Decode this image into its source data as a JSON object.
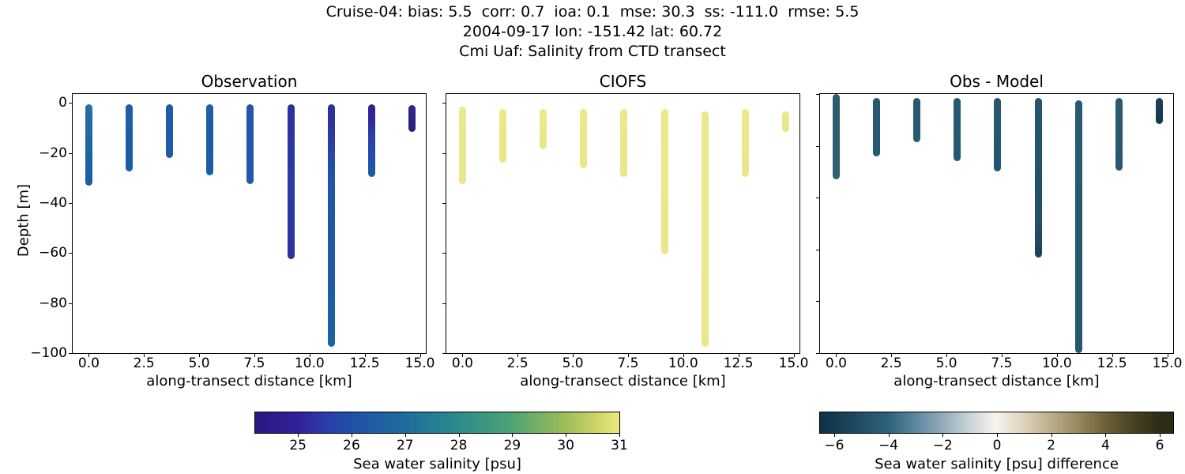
{
  "chart_data": {
    "type": "scatter",
    "suptitle": [
      "Cruise-04: bias: 5.5  corr: 0.7  ioa: 0.1  mse: 30.3  ss: -111.0  rmse: 5.5",
      "2004-09-17 lon: -151.42 lat: 60.72",
      "Cmi Uaf: Salinity from CTD transect"
    ],
    "xlabel": "along-transect distance [km]",
    "ylabel": "Depth [m]",
    "xlim": [
      -0.73,
      15.27
    ],
    "x_ticks": [
      0,
      2.5,
      5,
      7.5,
      10,
      12.5,
      15
    ],
    "x_tick_labels": [
      "0.0",
      "2.5",
      "5.0",
      "7.5",
      "10.0",
      "12.5",
      "15.0"
    ],
    "y_ticks": [
      0,
      -20,
      -40,
      -60,
      -80,
      -100
    ],
    "y_tick_labels": [
      "0",
      "−20",
      "−40",
      "−60",
      "−80",
      "−100"
    ],
    "station_distances_km": [
      0.0,
      1.83,
      3.66,
      5.49,
      7.32,
      9.15,
      10.98,
      12.81,
      14.64
    ],
    "panels": [
      {
        "title": "Observation",
        "ylim": [
          3.5,
          -100
        ],
        "bars": [
          {
            "x": 0.0,
            "top": -0.5,
            "bottom": -33,
            "stops": [
              [
                0,
                "#2470a2"
              ],
              [
                1,
                "#1a5ca4"
              ]
            ]
          },
          {
            "x": 1.83,
            "top": -0.5,
            "bottom": -27.5,
            "stops": [
              [
                0,
                "#1d5fa7"
              ],
              [
                1,
                "#1c5da5"
              ]
            ]
          },
          {
            "x": 3.66,
            "top": -0.5,
            "bottom": -22,
            "stops": [
              [
                0,
                "#2059a8"
              ],
              [
                1,
                "#1e5ba6"
              ]
            ]
          },
          {
            "x": 5.49,
            "top": -0.5,
            "bottom": -29,
            "stops": [
              [
                0,
                "#1e5da7"
              ],
              [
                1,
                "#1d5ca5"
              ]
            ]
          },
          {
            "x": 7.32,
            "top": -0.5,
            "bottom": -32.5,
            "stops": [
              [
                0,
                "#2355a8"
              ],
              [
                1,
                "#1f5aa6"
              ]
            ]
          },
          {
            "x": 9.15,
            "top": -0.5,
            "bottom": -62.5,
            "stops": [
              [
                0,
                "#2c319c"
              ],
              [
                0.5,
                "#2b3aa6"
              ],
              [
                1,
                "#2c349c"
              ]
            ]
          },
          {
            "x": 10.98,
            "top": -0.5,
            "bottom": -97.5,
            "stops": [
              [
                0,
                "#2d2e96"
              ],
              [
                0.13,
                "#2c3ca1"
              ],
              [
                0.28,
                "#2252a7"
              ],
              [
                1,
                "#1d62a4"
              ]
            ]
          },
          {
            "x": 12.81,
            "top": -0.5,
            "bottom": -29.5,
            "stops": [
              [
                0,
                "#3b1e8c"
              ],
              [
                0.2,
                "#30269c"
              ],
              [
                0.45,
                "#2a3fa7"
              ],
              [
                1,
                "#1d5ca5"
              ]
            ]
          },
          {
            "x": 14.64,
            "top": -1.0,
            "bottom": -11.5,
            "stops": [
              [
                0,
                "#2f288c"
              ],
              [
                1,
                "#282074"
              ]
            ]
          }
        ]
      },
      {
        "title": "CIOFS",
        "ylim": [
          3.5,
          -100
        ],
        "bars": [
          {
            "x": 0.0,
            "top": -1.5,
            "bottom": -32.5,
            "stops": [
              [
                0,
                "#ece88c"
              ],
              [
                1,
                "#eae78a"
              ]
            ]
          },
          {
            "x": 1.83,
            "top": -2.5,
            "bottom": -24,
            "stops": [
              [
                0,
                "#ece88c"
              ],
              [
                1,
                "#eae78a"
              ]
            ]
          },
          {
            "x": 3.66,
            "top": -2.5,
            "bottom": -18.5,
            "stops": [
              [
                0,
                "#ece88c"
              ],
              [
                1,
                "#eae78a"
              ]
            ]
          },
          {
            "x": 5.49,
            "top": -2.5,
            "bottom": -26,
            "stops": [
              [
                0,
                "#ece88c"
              ],
              [
                1,
                "#eae78a"
              ]
            ]
          },
          {
            "x": 7.32,
            "top": -2.5,
            "bottom": -29.5,
            "stops": [
              [
                0,
                "#ece88c"
              ],
              [
                1,
                "#eae78a"
              ]
            ]
          },
          {
            "x": 9.15,
            "top": -2.5,
            "bottom": -60.5,
            "stops": [
              [
                0,
                "#ece88c"
              ],
              [
                1,
                "#eae78a"
              ]
            ]
          },
          {
            "x": 10.98,
            "top": -3.5,
            "bottom": -97.5,
            "stops": [
              [
                0,
                "#ece88c"
              ],
              [
                1,
                "#eae78a"
              ]
            ]
          },
          {
            "x": 12.81,
            "top": -2.5,
            "bottom": -29.5,
            "stops": [
              [
                0,
                "#ece88c"
              ],
              [
                1,
                "#eae78a"
              ]
            ]
          },
          {
            "x": 14.64,
            "top": -3.5,
            "bottom": -11.5,
            "stops": [
              [
                0,
                "#ece88c"
              ],
              [
                1,
                "#eae78a"
              ]
            ]
          }
        ]
      },
      {
        "title": "Obs - Model",
        "ylim": [
          0,
          -100
        ],
        "bars": [
          {
            "x": 0.0,
            "top": 0,
            "bottom": -33,
            "stops": [
              [
                0,
                "#2c5b6e"
              ],
              [
                1,
                "#2e6173"
              ]
            ]
          },
          {
            "x": 1.83,
            "top": -1.5,
            "bottom": -24,
            "stops": [
              [
                0,
                "#265871"
              ],
              [
                1,
                "#26586f"
              ]
            ]
          },
          {
            "x": 3.66,
            "top": -1.5,
            "bottom": -18.5,
            "stops": [
              [
                0,
                "#265871"
              ],
              [
                1,
                "#26586f"
              ]
            ]
          },
          {
            "x": 5.49,
            "top": -1.5,
            "bottom": -26,
            "stops": [
              [
                0,
                "#26586f"
              ],
              [
                1,
                "#255870"
              ]
            ]
          },
          {
            "x": 7.32,
            "top": -1.5,
            "bottom": -30,
            "stops": [
              [
                0,
                "#255670"
              ],
              [
                1,
                "#24556e"
              ]
            ]
          },
          {
            "x": 9.15,
            "top": -1.5,
            "bottom": -63,
            "stops": [
              [
                0,
                "#255670"
              ],
              [
                0.8,
                "#224e66"
              ],
              [
                1,
                "#1d4156"
              ]
            ]
          },
          {
            "x": 10.98,
            "top": -2.5,
            "bottom": -100,
            "stops": [
              [
                0,
                "#2a5a72"
              ],
              [
                0.5,
                "#255871"
              ],
              [
                1,
                "#27586f"
              ]
            ]
          },
          {
            "x": 12.81,
            "top": -1.5,
            "bottom": -29.5,
            "stops": [
              [
                0,
                "#2a5a70"
              ],
              [
                1,
                "#275870"
              ]
            ]
          },
          {
            "x": 14.64,
            "top": -1.5,
            "bottom": -11.5,
            "stops": [
              [
                0,
                "#1d4258"
              ],
              [
                1,
                "#16374d"
              ]
            ]
          }
        ]
      }
    ],
    "colorbars": [
      {
        "label": "Sea water salinity [psu]",
        "vmin": 24.2,
        "vmax": 31.03,
        "ticks": [
          25,
          26,
          27,
          28,
          29,
          30,
          31
        ],
        "tick_labels": [
          "25",
          "26",
          "27",
          "28",
          "29",
          "30",
          "31"
        ],
        "stops": [
          [
            0.0,
            "#2a1681"
          ],
          [
            0.117,
            "#30219a"
          ],
          [
            0.19,
            "#2b3aa8"
          ],
          [
            0.264,
            "#2150a7"
          ],
          [
            0.41,
            "#1e6c9e"
          ],
          [
            0.556,
            "#2b8a8c"
          ],
          [
            0.703,
            "#4da374"
          ],
          [
            0.849,
            "#9cbd58"
          ],
          [
            0.93,
            "#c9d265"
          ],
          [
            1.0,
            "#efe97e"
          ]
        ]
      },
      {
        "label": "Sea water salinity [psu] difference",
        "vmin": -6.52,
        "vmax": 6.55,
        "ticks": [
          -6,
          -4,
          -2,
          0,
          2,
          4,
          6
        ],
        "tick_labels": [
          "−6",
          "−4",
          "−2",
          "0",
          "2",
          "4",
          "6"
        ],
        "stops": [
          [
            0.0,
            "#0d324a"
          ],
          [
            0.04,
            "#143a51"
          ],
          [
            0.193,
            "#2f617a"
          ],
          [
            0.269,
            "#5b87a0"
          ],
          [
            0.346,
            "#92aab8"
          ],
          [
            0.422,
            "#c9d3d9"
          ],
          [
            0.499,
            "#f7f3ec"
          ],
          [
            0.575,
            "#ddd3bd"
          ],
          [
            0.652,
            "#bdae8a"
          ],
          [
            0.728,
            "#998a60"
          ],
          [
            0.805,
            "#6f6139"
          ],
          [
            0.881,
            "#4b4425"
          ],
          [
            0.958,
            "#2f2d18"
          ],
          [
            1.0,
            "#2b2a17"
          ]
        ]
      }
    ]
  }
}
